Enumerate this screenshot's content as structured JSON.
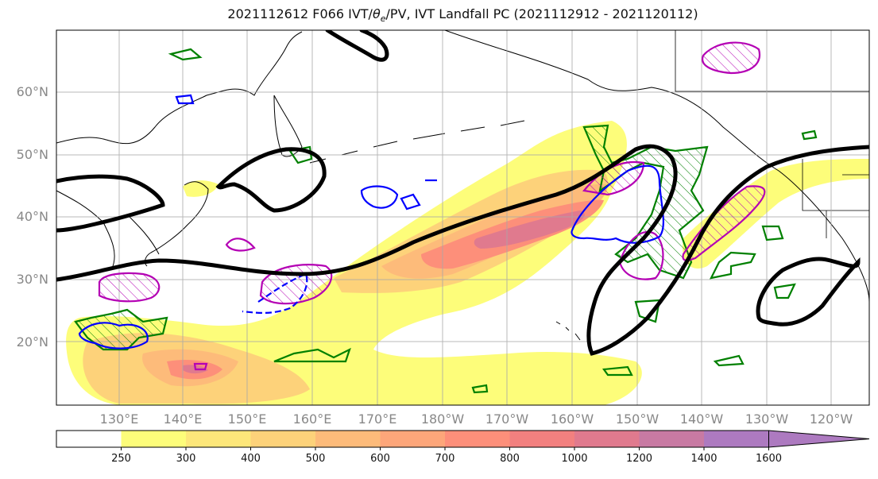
{
  "title": "2021112612 F066 IVT/θe/PV, IVT Landfall PC (2021112912 - 2021120112)",
  "title_parts": {
    "prefix": "2021112612 F066 IVT/",
    "theta": "θ",
    "subscript": "e",
    "suffix": "/PV, IVT Landfall PC (2021112912 - 2021120112)"
  },
  "map": {
    "lat_labels": [
      "60°N",
      "50°N",
      "40°N",
      "30°N",
      "20°N"
    ],
    "lon_labels": [
      "130°E",
      "140°E",
      "150°E",
      "160°E",
      "170°E",
      "180°W",
      "170°W",
      "160°W",
      "150°W",
      "140°W",
      "130°W",
      "120°W"
    ]
  },
  "colorbar": {
    "ticks": [
      "250",
      "300",
      "400",
      "500",
      "600",
      "700",
      "800",
      "1000",
      "1200",
      "1400",
      "1600"
    ],
    "colors": [
      "#ffffff",
      "#fdfd7a",
      "#fde77a",
      "#fdd27a",
      "#fdbb7a",
      "#fda67a",
      "#fd8f7a",
      "#f2807f",
      "#e07a8e",
      "#c87aa3",
      "#ad7ac0"
    ]
  },
  "colors": {
    "theta_e": "#000000",
    "pv_magenta": "#b400b4",
    "pv_blue": "#0000ff",
    "landfall_pc": "#008000",
    "grid": "#a8a8a8",
    "coast": "#000000"
  }
}
